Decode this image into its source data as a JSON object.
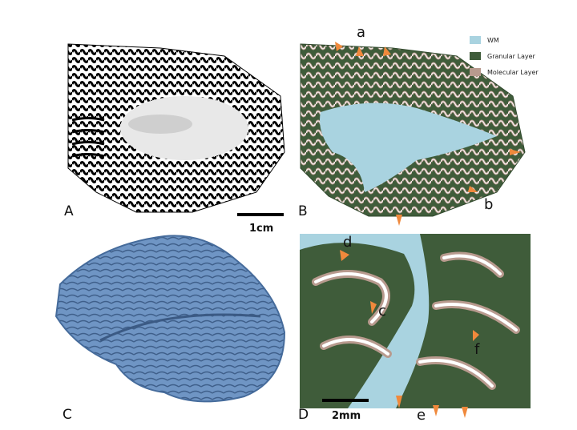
{
  "panels": {
    "a": {
      "label": "A"
    },
    "b": {
      "label": "B"
    },
    "c": {
      "label": "C"
    },
    "d": {
      "label": "D"
    }
  },
  "scalebars": {
    "top": {
      "text": "1cm"
    },
    "bottom": {
      "text": "2mm"
    }
  },
  "annotations": {
    "a": "a",
    "b": "b",
    "c": "c",
    "d": "d",
    "e": "e",
    "f": "f"
  },
  "legend": {
    "items": [
      {
        "label": "WM",
        "color": "#a9d3e0"
      },
      {
        "label": "Granular Layer",
        "color": "#3f5c3a"
      },
      {
        "label": "Molecular Layer",
        "color": "#b89a8e"
      }
    ]
  },
  "colors": {
    "arrow": "#f0893c",
    "surface_3d": "#6f95c4",
    "white_matter": "#a9d3e0",
    "granular": "#3f5c3a",
    "molecular": "#b89a8e"
  }
}
